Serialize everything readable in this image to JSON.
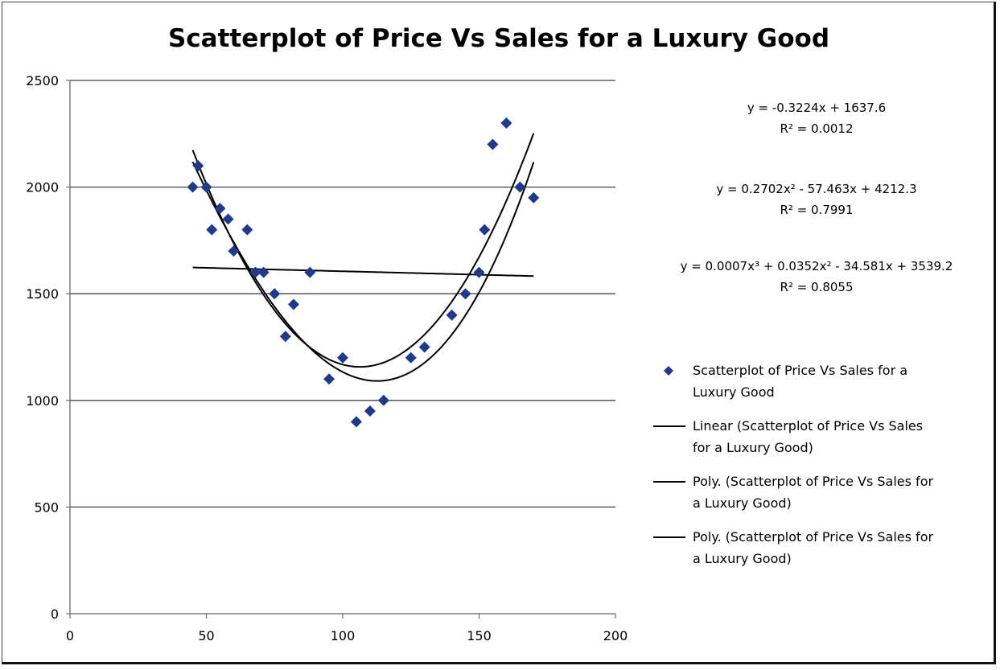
{
  "chart_data": {
    "type": "scatter",
    "title": "Scatterplot of Price Vs Sales for a Luxury Good",
    "xlabel": "",
    "ylabel": "",
    "xlim": [
      0,
      200
    ],
    "ylim": [
      0,
      2500
    ],
    "x_ticks": [
      "0",
      "50",
      "100",
      "150",
      "200"
    ],
    "y_ticks": [
      "0",
      "500",
      "1000",
      "1500",
      "2000",
      "2500"
    ],
    "x_tick_values": [
      0,
      50,
      100,
      150,
      200
    ],
    "y_tick_values": [
      0,
      500,
      1000,
      1500,
      2000,
      2500
    ],
    "gridlines": "horizontal",
    "marker_color": "#1f3a8a",
    "line_color": "#000000",
    "series": [
      {
        "name": "Scatterplot of Price Vs Sales for a Luxury Good",
        "kind": "points",
        "points": [
          [
            45,
            2000
          ],
          [
            47,
            2100
          ],
          [
            50,
            2000
          ],
          [
            52,
            1800
          ],
          [
            55,
            1900
          ],
          [
            58,
            1850
          ],
          [
            60,
            1700
          ],
          [
            65,
            1800
          ],
          [
            68,
            1600
          ],
          [
            71,
            1600
          ],
          [
            75,
            1500
          ],
          [
            79,
            1300
          ],
          [
            82,
            1450
          ],
          [
            88,
            1600
          ],
          [
            95,
            1100
          ],
          [
            100,
            1200
          ],
          [
            105,
            900
          ],
          [
            110,
            950
          ],
          [
            115,
            1000
          ],
          [
            125,
            1200
          ],
          [
            130,
            1250
          ],
          [
            140,
            1400
          ],
          [
            145,
            1500
          ],
          [
            150,
            1600
          ],
          [
            152,
            1800
          ],
          [
            155,
            2200
          ],
          [
            160,
            2300
          ],
          [
            165,
            2000
          ],
          [
            170,
            1950
          ]
        ]
      },
      {
        "name": "Linear (Scatterplot of Price Vs Sales for a Luxury Good)",
        "kind": "trend",
        "coefficients": [
          1637.6,
          -0.3224
        ],
        "x_range": [
          45,
          170
        ]
      },
      {
        "name": "Poly. (Scatterplot of Price Vs Sales for a Luxury Good)",
        "kind": "trend",
        "coefficients": [
          4212.3,
          -57.463,
          0.2702
        ],
        "x_range": [
          45,
          170
        ]
      },
      {
        "name": "Poly. (Scatterplot of Price Vs Sales for a Luxury Good)",
        "kind": "trend",
        "coefficients": [
          3539.2,
          -34.581,
          0.0352,
          0.0007
        ],
        "x_range": [
          45,
          170
        ]
      }
    ],
    "equations": [
      {
        "line1": "y = -0.3224x + 1637.6",
        "line2": "R² = 0.0012"
      },
      {
        "line1": "y = 0.2702x² - 57.463x + 4212.3",
        "line2": "R² = 0.7991"
      },
      {
        "line1": "y = 0.0007x³ + 0.0352x² - 34.581x + 3539.2",
        "line2": "R² = 0.8055"
      }
    ],
    "legend_position": "right",
    "legend": [
      {
        "type": "marker",
        "lines": [
          "Scatterplot of Price Vs Sales for a",
          "Luxury Good"
        ]
      },
      {
        "type": "line",
        "lines": [
          "Linear (Scatterplot of Price Vs Sales",
          "for a Luxury Good)"
        ]
      },
      {
        "type": "line",
        "lines": [
          "Poly. (Scatterplot of Price Vs Sales for",
          "a Luxury Good)"
        ]
      },
      {
        "type": "line",
        "lines": [
          "Poly. (Scatterplot of Price Vs Sales for",
          "a Luxury Good)"
        ]
      }
    ]
  }
}
